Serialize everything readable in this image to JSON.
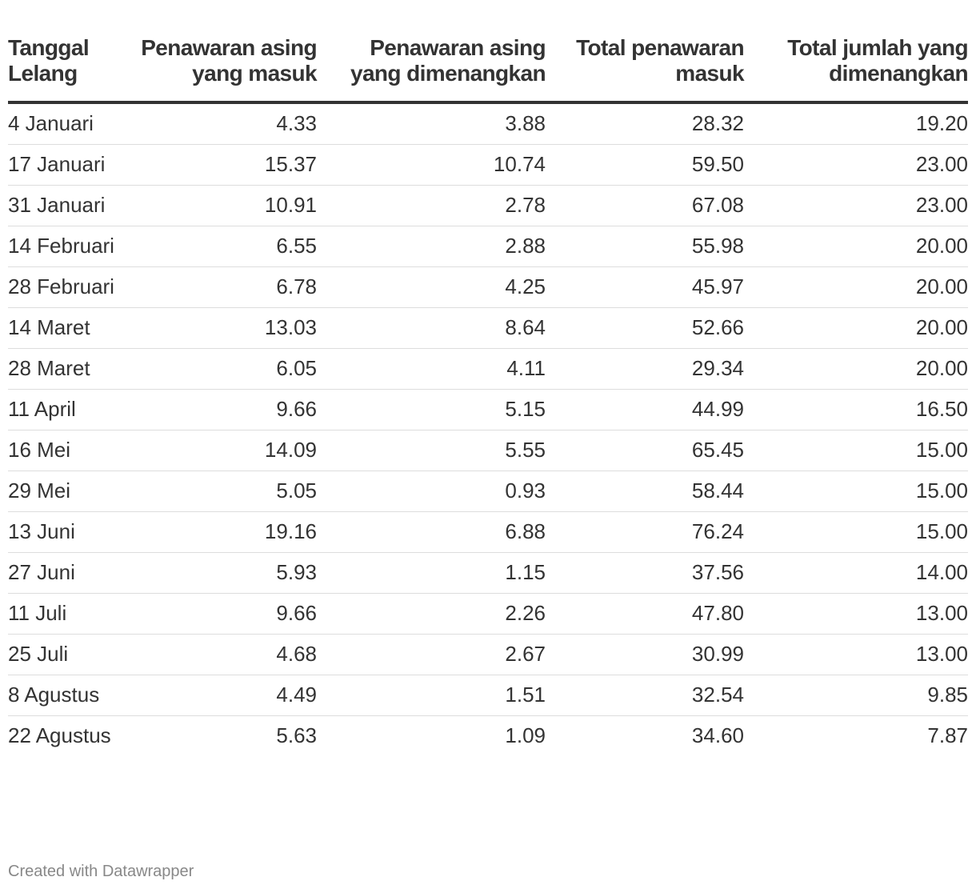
{
  "chart_data": {
    "type": "table",
    "columns": [
      "Tanggal Lelang",
      "Penawaran asing yang masuk",
      "Penawaran asing yang dimenangkan",
      "Total penawaran masuk",
      "Total jumlah yang dimenangkan"
    ],
    "rows": [
      [
        "4 Januari",
        "4.33",
        "3.88",
        "28.32",
        "19.20"
      ],
      [
        "17 Januari",
        "15.37",
        "10.74",
        "59.50",
        "23.00"
      ],
      [
        "31 Januari",
        "10.91",
        "2.78",
        "67.08",
        "23.00"
      ],
      [
        "14 Februari",
        "6.55",
        "2.88",
        "55.98",
        "20.00"
      ],
      [
        "28 Februari",
        "6.78",
        "4.25",
        "45.97",
        "20.00"
      ],
      [
        "14 Maret",
        "13.03",
        "8.64",
        "52.66",
        "20.00"
      ],
      [
        "28 Maret",
        "6.05",
        "4.11",
        "29.34",
        "20.00"
      ],
      [
        "11 April",
        "9.66",
        "5.15",
        "44.99",
        "16.50"
      ],
      [
        "16 Mei",
        "14.09",
        "5.55",
        "65.45",
        "15.00"
      ],
      [
        "29 Mei",
        "5.05",
        "0.93",
        "58.44",
        "15.00"
      ],
      [
        "13 Juni",
        "19.16",
        "6.88",
        "76.24",
        "15.00"
      ],
      [
        "27 Juni",
        "5.93",
        "1.15",
        "37.56",
        "14.00"
      ],
      [
        "11 Juli",
        "9.66",
        "2.26",
        "47.80",
        "13.00"
      ],
      [
        "25 Juli",
        "4.68",
        "2.67",
        "30.99",
        "13.00"
      ],
      [
        "8 Agustus",
        "4.49",
        "1.51",
        "32.54",
        "9.85"
      ],
      [
        "22 Agustus",
        "5.63",
        "1.09",
        "34.60",
        "7.87"
      ]
    ]
  },
  "footer": {
    "credit": "Created with Datawrapper"
  }
}
